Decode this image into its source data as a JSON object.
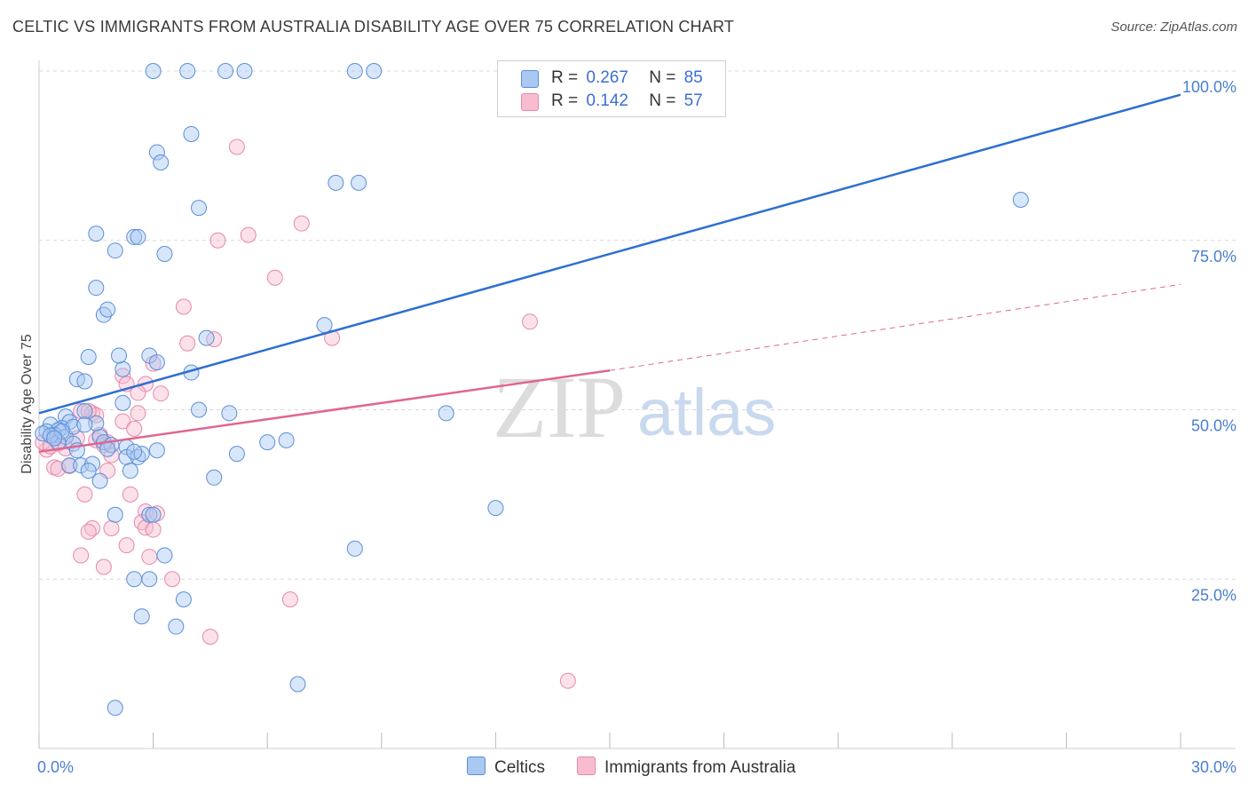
{
  "header": {
    "title": "CELTIC VS IMMIGRANTS FROM AUSTRALIA DISABILITY AGE OVER 75 CORRELATION CHART",
    "source": "Source: ZipAtlas.com"
  },
  "watermark": {
    "zip": "ZIP",
    "atlas": "atlas"
  },
  "legend": {
    "celtics": {
      "r_label": "R =",
      "r_value": "0.267",
      "n_label": "N =",
      "n_value": "85"
    },
    "immigrants": {
      "r_label": "R =",
      "r_value": "0.142",
      "n_label": "N =",
      "n_value": "57"
    }
  },
  "bottom_legend": {
    "celtics": "Celtics",
    "immigrants": "Immigrants from Australia"
  },
  "colors": {
    "celtics_fill": "#a9c8f2",
    "celtics_stroke": "#5b8fd9",
    "celtics_line": "#2e6fd0",
    "immigrants_fill": "#f7bcd0",
    "immigrants_stroke": "#e888a8",
    "immigrants_line": "#e06690",
    "tick_text": "#4a7fd0"
  },
  "chart_data": {
    "type": "scatter",
    "title": "CELTIC VS IMMIGRANTS FROM AUSTRALIA DISABILITY AGE OVER 75 CORRELATION CHART",
    "xlabel": "",
    "ylabel": "Disability Age Over 75",
    "xlim": [
      0,
      30
    ],
    "ylim": [
      0,
      100
    ],
    "x_tick_labels": [
      "0.0%",
      "30.0%"
    ],
    "y_tick_labels": [
      {
        "value": 25,
        "label": "25.0%"
      },
      {
        "value": 50,
        "label": "50.0%"
      },
      {
        "value": 75,
        "label": "75.0%"
      },
      {
        "value": 100,
        "label": "100.0%"
      }
    ],
    "grid": true,
    "series": [
      {
        "name": "Celtics",
        "r": 0.267,
        "n": 85,
        "trend": {
          "x0": 0,
          "y0": 49.5,
          "x1": 30,
          "y1": 96.5
        },
        "points": [
          [
            3,
            100
          ],
          [
            3.9,
            100
          ],
          [
            4.9,
            100
          ],
          [
            5.4,
            100
          ],
          [
            8.3,
            100
          ],
          [
            8.8,
            100
          ],
          [
            3.1,
            88
          ],
          [
            3.2,
            86.5
          ],
          [
            4,
            90.7
          ],
          [
            7.8,
            83.5
          ],
          [
            8.4,
            83.5
          ],
          [
            25.8,
            81
          ],
          [
            4.2,
            79.8
          ],
          [
            1.5,
            76
          ],
          [
            2.5,
            75.5
          ],
          [
            2.6,
            75.5
          ],
          [
            2,
            73.5
          ],
          [
            3.3,
            73
          ],
          [
            1.5,
            68
          ],
          [
            1.7,
            64
          ],
          [
            1.8,
            64.8
          ],
          [
            4.4,
            60.6
          ],
          [
            7.5,
            62.5
          ],
          [
            1.3,
            57.8
          ],
          [
            2.2,
            56
          ],
          [
            2.1,
            58
          ],
          [
            2.9,
            58
          ],
          [
            3.1,
            57
          ],
          [
            4,
            55.5
          ],
          [
            1,
            54.5
          ],
          [
            1.2,
            54.2
          ],
          [
            2.2,
            51
          ],
          [
            4.2,
            50
          ],
          [
            5,
            49.5
          ],
          [
            10.7,
            49.5
          ],
          [
            1.2,
            49.8
          ],
          [
            0.7,
            49
          ],
          [
            0.8,
            48.2
          ],
          [
            0.6,
            47.3
          ],
          [
            0.3,
            47.8
          ],
          [
            0.5,
            47
          ],
          [
            0.2,
            46.8
          ],
          [
            0.4,
            46.3
          ],
          [
            0.7,
            46
          ],
          [
            0.5,
            45.2
          ],
          [
            0.9,
            45
          ],
          [
            1.6,
            46
          ],
          [
            1.7,
            45.2
          ],
          [
            1.9,
            44.8
          ],
          [
            2.3,
            44.5
          ],
          [
            3.1,
            44
          ],
          [
            6,
            45.2
          ],
          [
            6.5,
            45.5
          ],
          [
            2.3,
            43
          ],
          [
            2.6,
            43
          ],
          [
            2.7,
            43.5
          ],
          [
            1,
            44
          ],
          [
            5.2,
            43.5
          ],
          [
            0.8,
            41.8
          ],
          [
            1.1,
            41.8
          ],
          [
            1.4,
            42
          ],
          [
            1.3,
            41
          ],
          [
            2.4,
            41
          ],
          [
            4.6,
            40
          ],
          [
            1.6,
            39.5
          ],
          [
            12,
            35.5
          ],
          [
            2,
            34.5
          ],
          [
            2.9,
            34.5
          ],
          [
            3,
            34.5
          ],
          [
            8.3,
            29.5
          ],
          [
            3.3,
            28.5
          ],
          [
            2.5,
            25
          ],
          [
            2.9,
            25
          ],
          [
            3.8,
            22
          ],
          [
            2.7,
            19.5
          ],
          [
            3.6,
            18
          ],
          [
            6.8,
            9.5
          ],
          [
            2,
            6
          ],
          [
            0.1,
            46.5
          ],
          [
            0.3,
            46.2
          ],
          [
            0.9,
            47.5
          ],
          [
            1.5,
            48
          ],
          [
            1.2,
            47.8
          ],
          [
            0.6,
            46.8
          ],
          [
            0.4,
            45.8
          ],
          [
            1.8,
            44.2
          ],
          [
            2.5,
            43.8
          ]
        ]
      },
      {
        "name": "Immigrants from Australia",
        "r": 0.142,
        "n": 57,
        "trend": {
          "x0": 0,
          "y0": 43.8,
          "x1": 15,
          "y1": 55.8,
          "dashed_to": {
            "x": 30,
            "y": 68.5
          }
        },
        "points": [
          [
            5.2,
            88.8
          ],
          [
            6.9,
            77.5
          ],
          [
            5.5,
            75.8
          ],
          [
            4.7,
            75
          ],
          [
            6.2,
            69.5
          ],
          [
            3.8,
            65.2
          ],
          [
            3.9,
            59.8
          ],
          [
            4.6,
            60.4
          ],
          [
            7.7,
            60.6
          ],
          [
            12.9,
            63
          ],
          [
            3,
            56.8
          ],
          [
            2.2,
            55
          ],
          [
            2.8,
            53.8
          ],
          [
            2.3,
            53.8
          ],
          [
            2.6,
            52.5
          ],
          [
            3.2,
            52.4
          ],
          [
            2.6,
            49.5
          ],
          [
            2.2,
            48.3
          ],
          [
            2.5,
            47.2
          ],
          [
            1.1,
            49.8
          ],
          [
            1.4,
            49.5
          ],
          [
            1.5,
            49.2
          ],
          [
            1.3,
            49.8
          ],
          [
            1.8,
            45.2
          ],
          [
            1.5,
            45.5
          ],
          [
            1.6,
            46.3
          ],
          [
            0.4,
            46
          ],
          [
            0.5,
            45
          ],
          [
            0.7,
            44.3
          ],
          [
            0.2,
            44.1
          ],
          [
            1.9,
            43.3
          ],
          [
            0.4,
            41.5
          ],
          [
            0.5,
            41.3
          ],
          [
            0.8,
            41.7
          ],
          [
            1.8,
            41
          ],
          [
            1.2,
            37.5
          ],
          [
            2.4,
            37.5
          ],
          [
            2.8,
            35
          ],
          [
            3.1,
            34.7
          ],
          [
            2.7,
            33.4
          ],
          [
            2.8,
            32.6
          ],
          [
            3,
            32.3
          ],
          [
            1.4,
            32.5
          ],
          [
            1.3,
            32
          ],
          [
            1.9,
            32.5
          ],
          [
            2.3,
            30
          ],
          [
            1.1,
            28.5
          ],
          [
            2.9,
            28.3
          ],
          [
            1.7,
            26.8
          ],
          [
            3.5,
            25
          ],
          [
            6.6,
            22
          ],
          [
            4.5,
            16.5
          ],
          [
            13.9,
            10
          ],
          [
            0.1,
            45.2
          ],
          [
            0.3,
            44.6
          ],
          [
            1,
            45.8
          ],
          [
            1.7,
            44.8
          ]
        ]
      }
    ]
  }
}
